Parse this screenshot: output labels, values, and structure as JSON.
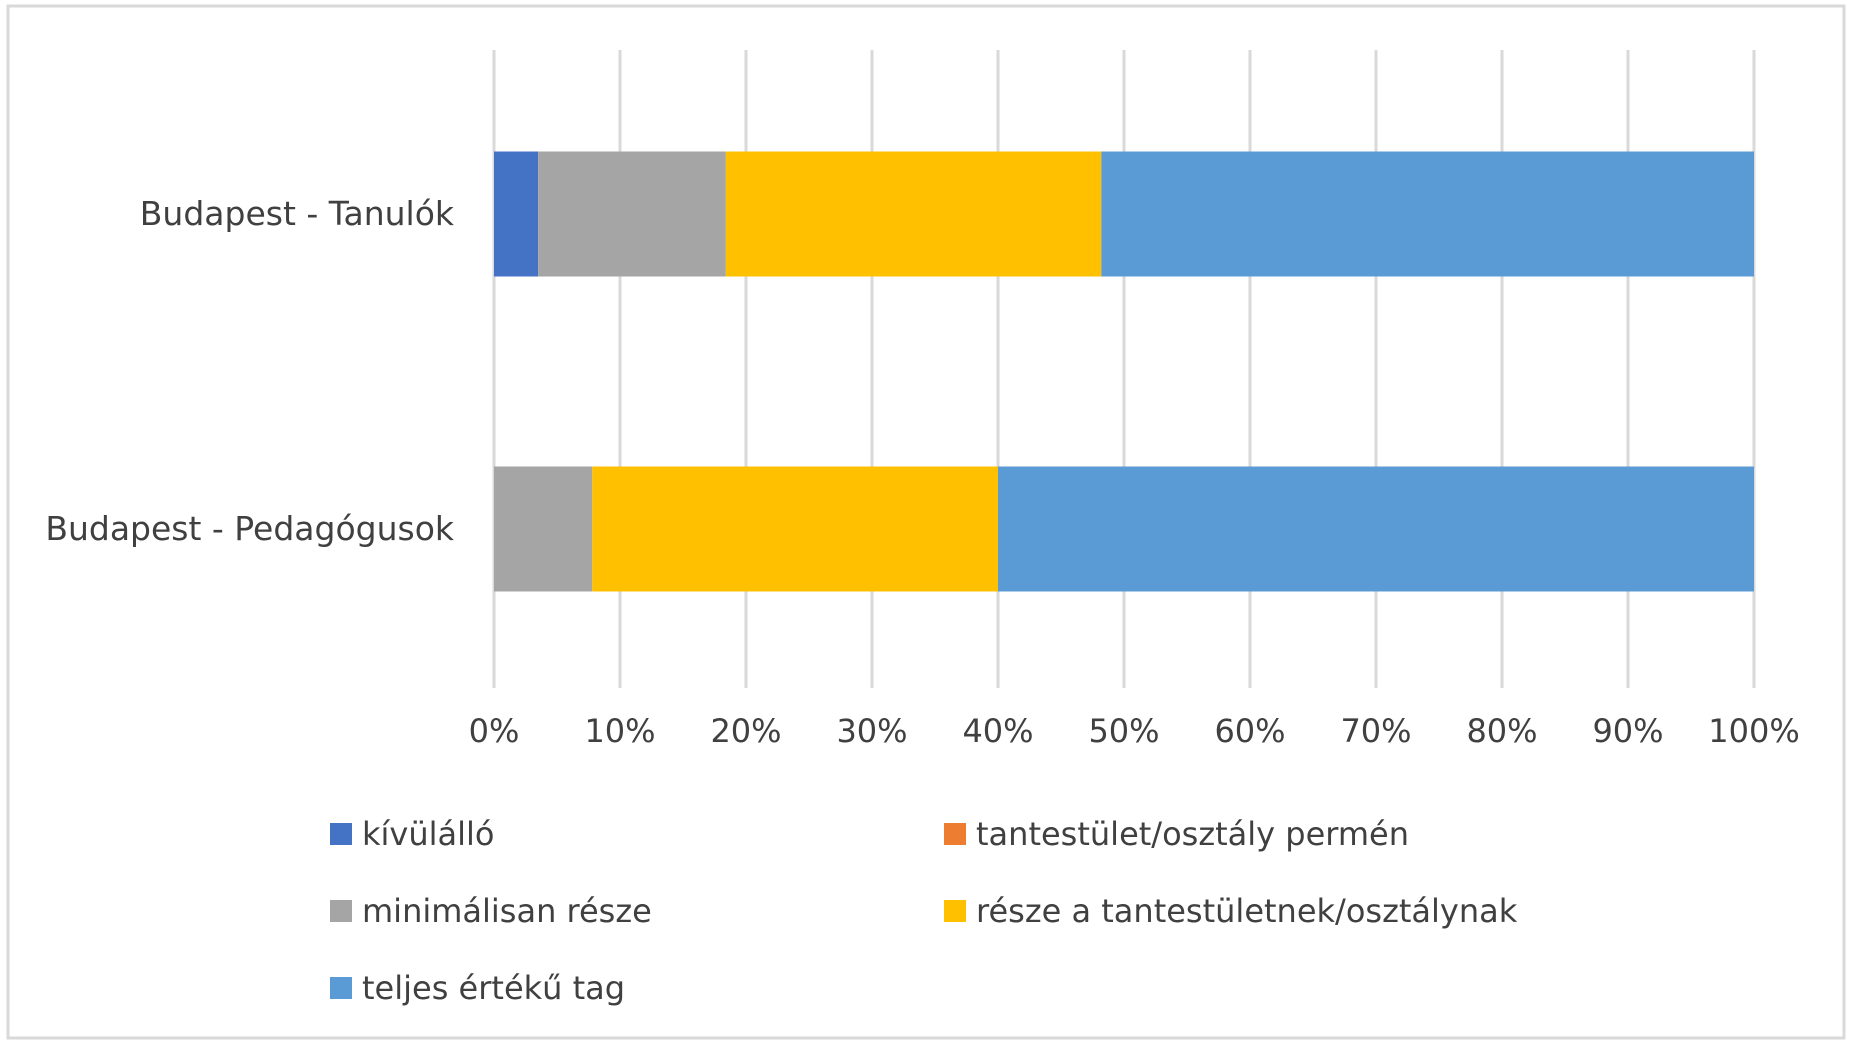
{
  "chart_data": {
    "type": "bar",
    "orientation": "horizontal",
    "stacked": "percent",
    "categories": [
      "Budapest - Tanulók",
      "Budapest - Pedagógusok"
    ],
    "series": [
      {
        "name": "kívülálló",
        "color": "#4472c4",
        "values": [
          3.5,
          0
        ]
      },
      {
        "name": "tantestület/osztály permén",
        "color": "#ed7d31",
        "values": [
          0,
          0
        ]
      },
      {
        "name": "minimálisan része",
        "color": "#a5a5a5",
        "values": [
          14.9,
          7.8
        ]
      },
      {
        "name": "része a tantestületnek/osztálynak",
        "color": "#ffc000",
        "values": [
          29.8,
          32.2
        ]
      },
      {
        "name": "teljes értékű tag",
        "color": "#5b9bd5",
        "values": [
          51.8,
          60.0
        ]
      }
    ],
    "xlim": [
      0,
      100
    ],
    "x_ticks": [
      "0%",
      "10%",
      "20%",
      "30%",
      "40%",
      "50%",
      "60%",
      "70%",
      "80%",
      "90%",
      "100%"
    ],
    "grid": true,
    "legend_position": "bottom"
  }
}
